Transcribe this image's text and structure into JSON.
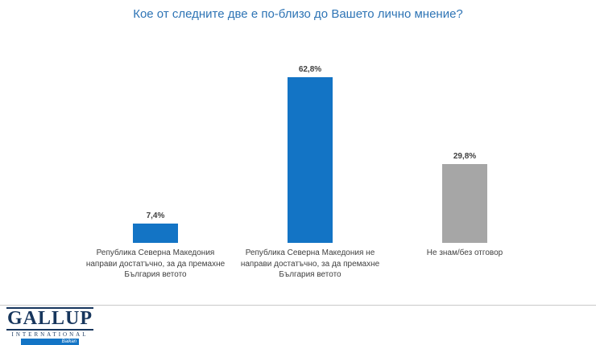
{
  "title": "Кое от следните две е по-близо до Вашето лично мнение?",
  "chart_data": {
    "type": "bar",
    "title": "Кое от следните две е по-близо до Вашето лично мнение?",
    "categories": [
      "Република Северна Македония направи достатъчно, за да премахне България ветото",
      "Република Северна Македония не направи достатъчно, за да премахне България ветото",
      "Не знам/без отговор"
    ],
    "values": [
      7.4,
      62.8,
      29.8
    ],
    "value_labels": [
      "7,4%",
      "62,8%",
      "29,8%"
    ],
    "bar_colors": [
      "#1374c5",
      "#1374c5",
      "#a6a6a6"
    ],
    "xlabel": "",
    "ylabel": "",
    "ylim": [
      0,
      70
    ],
    "grid": false,
    "legend": false
  },
  "footer": {
    "logo_primary": "GALLUP",
    "logo_secondary": "INTERNATIONAL",
    "logo_ribbon": "Balkan",
    "logo_color": "#17365d",
    "ribbon_color": "#1374c5"
  }
}
